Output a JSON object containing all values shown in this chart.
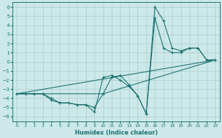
{
  "xlabel": "Humidex (Indice chaleur)",
  "xlim": [
    -0.5,
    23.5
  ],
  "ylim": [
    -6.5,
    6.5
  ],
  "xticks": [
    0,
    1,
    2,
    3,
    4,
    5,
    6,
    7,
    8,
    9,
    10,
    11,
    12,
    13,
    14,
    15,
    16,
    17,
    18,
    19,
    20,
    21,
    22,
    23
  ],
  "yticks": [
    -6,
    -5,
    -4,
    -3,
    -2,
    -1,
    0,
    1,
    2,
    3,
    4,
    5,
    6
  ],
  "background_color": "#cce8e8",
  "grid_color": "#aacccc",
  "line_color": "#1a7070",
  "series": [
    {
      "x": [
        0,
        1,
        2,
        3,
        4,
        5,
        6,
        7,
        8,
        9,
        10,
        11,
        12,
        13,
        14,
        15,
        16,
        17,
        18,
        19,
        20,
        21,
        22,
        23
      ],
      "y": [
        -3.5,
        -3.5,
        -3.5,
        -3.5,
        -4.2,
        -4.5,
        -4.5,
        -4.7,
        -4.7,
        -5.5,
        -1.7,
        -1.5,
        -2.0,
        -2.7,
        -3.7,
        -5.7,
        6.0,
        4.5,
        1.5,
        1.2,
        1.5,
        1.5,
        0.2,
        0.2
      ],
      "marker": true
    },
    {
      "x": [
        0,
        1,
        2,
        3,
        4,
        5,
        6,
        7,
        8,
        9,
        10,
        11,
        12,
        13,
        14,
        15,
        16,
        17,
        18,
        19,
        20,
        21,
        22,
        23
      ],
      "y": [
        -3.5,
        -3.5,
        -3.5,
        -3.5,
        -4.0,
        -4.5,
        -4.5,
        -4.7,
        -4.7,
        -5.0,
        -3.5,
        -1.7,
        -1.5,
        -2.5,
        -3.7,
        -5.7,
        4.8,
        1.5,
        1.0,
        1.0,
        1.5,
        1.5,
        0.2,
        0.2
      ],
      "marker": true
    },
    {
      "x": [
        0,
        23
      ],
      "y": [
        -3.5,
        0.2
      ],
      "marker": false
    },
    {
      "x": [
        0,
        10,
        23
      ],
      "y": [
        -3.5,
        -3.5,
        0.2
      ],
      "marker": false
    }
  ]
}
